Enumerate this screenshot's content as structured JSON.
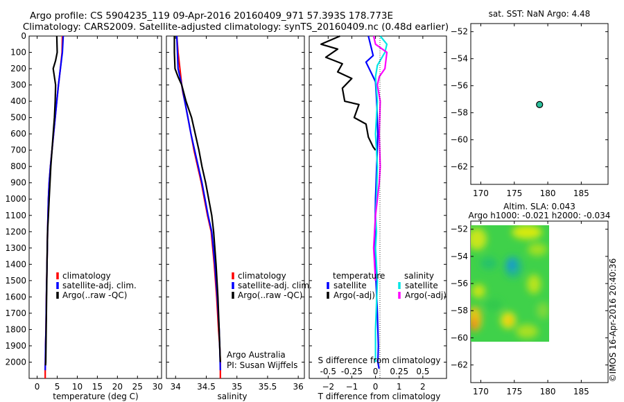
{
  "header": {
    "line1": "Argo profile: CS 5904235_119 09-Apr-2016 20160409_971 57.393S 178.773E",
    "line2": "Climatology: CARS2009. Satellite-adjusted climatology: synTS_20160409.nc (0.48d earlier)"
  },
  "credit": "©IMOS 16-Apr-2016 20:40:36",
  "colors": {
    "climatology": "#ff0000",
    "satellite": "#0000ff",
    "argo": "#000000",
    "sal_satellite": "#00e5e5",
    "sal_argo": "#ff00ff",
    "marker": "#2bbf9b"
  },
  "chart_data": [
    {
      "id": "temperature",
      "type": "line",
      "xlabel": "temperature (deg C)",
      "xlim": [
        -2,
        31
      ],
      "ylim": [
        0,
        2100
      ],
      "y_inverted": true,
      "xticks": [
        0,
        5,
        10,
        15,
        20,
        25,
        30
      ],
      "yticks": [
        0,
        100,
        200,
        300,
        400,
        500,
        600,
        700,
        800,
        900,
        1000,
        1100,
        1200,
        1300,
        1400,
        1500,
        1600,
        1700,
        1800,
        1900,
        2000
      ],
      "legend": [
        "climatology",
        "satellite-adj. clim.",
        "Argo(..raw -QC)"
      ],
      "series": [
        {
          "name": "climatology",
          "color": "#ff0000",
          "x": [
            6.3,
            6.2,
            5.8,
            5.3,
            4.9,
            4.5,
            4.1,
            3.7,
            3.3,
            3.0,
            2.8,
            2.6,
            2.45,
            2.3,
            2.2,
            2.1,
            2.05,
            2.0,
            2.0
          ],
          "y": [
            0,
            100,
            200,
            300,
            400,
            500,
            600,
            700,
            800,
            900,
            1000,
            1200,
            1400,
            1600,
            1800,
            1900,
            2000,
            2050,
            2100
          ]
        },
        {
          "name": "satellite-adj. clim.",
          "color": "#0000ff",
          "x": [
            6.5,
            6.3,
            5.8,
            5.3,
            4.9,
            4.5,
            4.1,
            3.7,
            3.3,
            3.0,
            2.8,
            2.6,
            2.45,
            2.3,
            2.2,
            2.1,
            2.05,
            2.0
          ],
          "y": [
            0,
            100,
            200,
            300,
            400,
            500,
            600,
            700,
            800,
            900,
            1000,
            1200,
            1400,
            1600,
            1800,
            1900,
            2000,
            2050
          ]
        },
        {
          "name": "Argo(..raw -QC)",
          "color": "#000000",
          "x": [
            4.9,
            5.0,
            4.6,
            4.0,
            4.6,
            4.5,
            4.3,
            4.0,
            3.7,
            3.4,
            3.2,
            3.0,
            2.8,
            2.6,
            2.45,
            2.35,
            2.25,
            2.2,
            2.15,
            2.1
          ],
          "y": [
            0,
            100,
            150,
            200,
            300,
            400,
            500,
            600,
            700,
            800,
            900,
            1000,
            1100,
            1200,
            1400,
            1600,
            1800,
            1900,
            2000,
            2020
          ]
        }
      ]
    },
    {
      "id": "salinity",
      "type": "line",
      "xlabel": "salinity",
      "xlim": [
        33.85,
        36.1
      ],
      "ylim": [
        0,
        2100
      ],
      "y_inverted": true,
      "xticks": [
        34,
        34.5,
        35,
        35.5,
        36
      ],
      "xtick_labels": [
        "34",
        "34.5",
        "35",
        "35.5",
        "36"
      ],
      "legend": [
        "climatology",
        "satellite-adj. clim.",
        "Argo(..raw -QC)"
      ],
      "annotation": [
        "Argo Australia",
        "PI: Susan Wijffels"
      ],
      "series": [
        {
          "name": "climatology",
          "color": "#ff0000",
          "x": [
            34.02,
            34.04,
            34.07,
            34.1,
            34.12,
            34.15,
            34.2,
            34.25,
            34.3,
            34.36,
            34.42,
            34.47,
            34.52,
            34.58,
            34.63,
            34.67,
            34.7,
            34.72,
            34.73,
            34.73
          ],
          "y": [
            0,
            100,
            200,
            300,
            350,
            400,
            500,
            600,
            700,
            800,
            900,
            1000,
            1100,
            1200,
            1400,
            1600,
            1800,
            1900,
            2000,
            2100
          ]
        },
        {
          "name": "satellite-adj. clim.",
          "color": "#0000ff",
          "x": [
            34.02,
            34.03,
            34.04,
            34.07,
            34.1,
            34.15,
            34.2,
            34.25,
            34.31,
            34.37,
            34.43,
            34.48,
            34.53,
            34.59,
            34.64,
            34.68,
            34.71,
            34.72,
            34.73
          ],
          "y": [
            0,
            100,
            200,
            250,
            300,
            400,
            500,
            600,
            700,
            800,
            900,
            1000,
            1100,
            1200,
            1400,
            1600,
            1800,
            1900,
            2050
          ]
        },
        {
          "name": "Argo(..raw -QC)",
          "color": "#000000",
          "x": [
            33.98,
            33.98,
            33.99,
            34.04,
            34.1,
            34.17,
            34.26,
            34.32,
            34.38,
            34.43,
            34.49,
            34.54,
            34.59,
            34.62,
            34.66,
            34.69,
            34.71,
            34.72,
            34.73
          ],
          "y": [
            0,
            100,
            200,
            250,
            300,
            400,
            500,
            600,
            700,
            800,
            900,
            1000,
            1100,
            1200,
            1400,
            1600,
            1800,
            1900,
            2000
          ]
        }
      ]
    },
    {
      "id": "difference",
      "type": "line",
      "xlabel": "T difference from climatology",
      "xlabel_top": "S difference from climatology",
      "xlim": [
        -2.8,
        3.0
      ],
      "ylim": [
        0,
        2100
      ],
      "y_inverted": true,
      "xticks": [
        -2,
        -1,
        0,
        1,
        2
      ],
      "s_ticks": [
        -0.5,
        -0.25,
        0,
        0.25,
        0.5
      ],
      "s_tick_labels": [
        "-0.5",
        "-0.25",
        "0",
        "0.25",
        "0.5"
      ],
      "legend_titles": [
        "temperature",
        "salinity"
      ],
      "legend": [
        "satellite",
        "Argo(-adj)",
        "satellite",
        "Argo(-adj)"
      ],
      "series": [
        {
          "name": "satellite",
          "group": "temperature",
          "color": "#0000ff",
          "x": [
            -0.3,
            -0.2,
            -0.1,
            -0.4,
            -0.2,
            0.0,
            0.05,
            0.1,
            0.05,
            0.0,
            -0.02,
            0.0,
            0.02,
            0.05,
            0.08,
            0.1,
            0.12,
            0.1,
            0.15
          ],
          "y": [
            0,
            60,
            120,
            160,
            220,
            280,
            400,
            600,
            800,
            1000,
            1200,
            1400,
            1500,
            1600,
            1700,
            1800,
            1900,
            2000,
            2040
          ]
        },
        {
          "name": "Argo(-adj)",
          "group": "temperature",
          "color": "#000000",
          "x": [
            -1.5,
            -2.3,
            -1.6,
            -2.1,
            -1.4,
            -1.6,
            -1.0,
            -1.4,
            -1.3,
            -0.7,
            -0.9,
            -0.4,
            -0.3,
            -0.1,
            0.0
          ],
          "y": [
            0,
            50,
            80,
            130,
            170,
            220,
            260,
            320,
            400,
            420,
            500,
            540,
            620,
            680,
            700
          ]
        },
        {
          "name": "satellite",
          "group": "salinity",
          "color": "#00e5e5",
          "x": [
            0.05,
            0.12,
            0.1,
            0.02,
            0.0,
            0.02,
            0.0,
            0.02,
            0.01,
            0.0,
            0.01,
            0.0,
            0.02,
            0.0,
            0.0
          ],
          "y": [
            0,
            50,
            100,
            180,
            250,
            400,
            600,
            800,
            1000,
            1100,
            1200,
            1300,
            1500,
            1800,
            2000
          ]
        },
        {
          "name": "Argo(-adj)",
          "group": "salinity",
          "color": "#ff00ff",
          "x": [
            -0.02,
            0.0,
            0.12,
            0.1,
            0.04,
            0.02,
            0.05,
            0.04,
            0.05,
            0.04,
            0.02,
            0.0,
            -0.01,
            -0.02,
            -0.01,
            0.0
          ],
          "y": [
            0,
            50,
            100,
            200,
            250,
            300,
            400,
            600,
            800,
            900,
            1000,
            1100,
            1200,
            1300,
            1400,
            1500
          ]
        }
      ]
    },
    {
      "id": "sst-location",
      "type": "scatter",
      "title": "sat. SST: NaN Argo: 4.48",
      "xlim": [
        168.5,
        189
      ],
      "ylim": [
        -63.3,
        -51.4
      ],
      "xticks": [
        170,
        175,
        180,
        185
      ],
      "yticks": [
        -52,
        -54,
        -56,
        -58,
        -60,
        -62
      ],
      "points": [
        {
          "x": 178.773,
          "y": -57.393
        }
      ]
    },
    {
      "id": "sla-map",
      "type": "heatmap",
      "title_lines": [
        "Altim. SLA: 0.043",
        "Argo h1000: -0.021 h2000: -0.034"
      ],
      "xlim": [
        168.5,
        189
      ],
      "ylim": [
        -63.3,
        -51.4
      ],
      "xticks": [
        170,
        175,
        180,
        185
      ],
      "yticks": [
        -52,
        -54,
        -56,
        -58,
        -60,
        -62
      ],
      "extent": {
        "lon": [
          169.5,
          180
        ],
        "lat": [
          -60,
          -51.9
        ]
      }
    }
  ]
}
